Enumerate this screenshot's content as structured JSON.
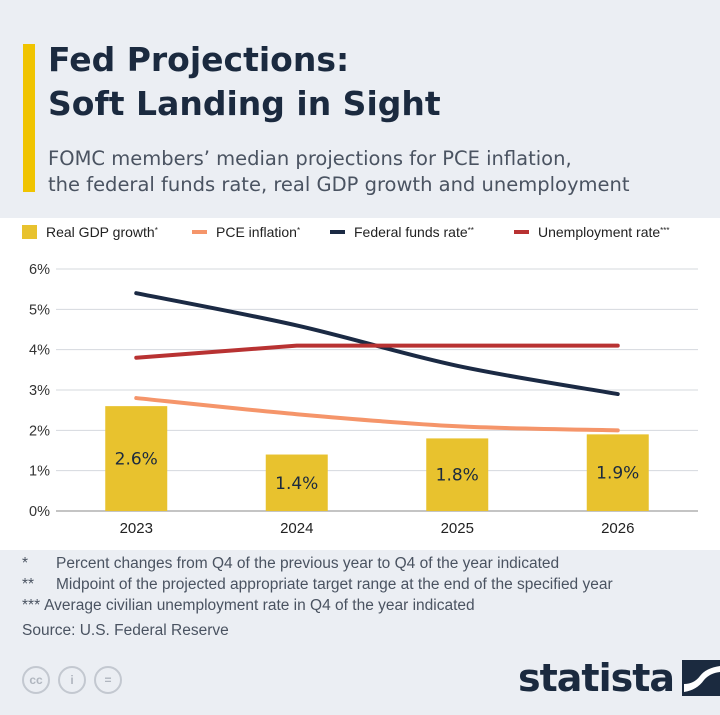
{
  "title_line1": "Fed Projections:",
  "title_line2": "Soft Landing in Sight",
  "subtitle_line1": "FOMC members’ median projections for PCE inflation,",
  "subtitle_line2": "the federal funds rate, real GDP growth and unemployment",
  "legend": [
    {
      "label": "Real GDP growth",
      "mark": "*",
      "color": "#e8c22e",
      "shape": "box"
    },
    {
      "label": "PCE inflation",
      "mark": "*",
      "color": "#f5956a",
      "shape": "line"
    },
    {
      "label": "Federal funds rate",
      "mark": "**",
      "color": "#1b2a44",
      "shape": "line"
    },
    {
      "label": "Unemployment rate",
      "mark": "***",
      "color": "#b83232",
      "shape": "line"
    }
  ],
  "chart_data": {
    "type": "bar",
    "categories": [
      "2023",
      "2024",
      "2025",
      "2026"
    ],
    "ylim": [
      0,
      6
    ],
    "yticks": [
      "0%",
      "1%",
      "2%",
      "3%",
      "4%",
      "5%",
      "6%"
    ],
    "grid": true,
    "bars": {
      "name": "Real GDP growth",
      "values": [
        2.6,
        1.4,
        1.8,
        1.9
      ],
      "labels": [
        "2.6%",
        "1.4%",
        "1.8%",
        "1.9%"
      ]
    },
    "series": [
      {
        "name": "PCE inflation",
        "type": "line",
        "values": [
          2.8,
          2.4,
          2.1,
          2.0
        ]
      },
      {
        "name": "Federal funds rate",
        "type": "line",
        "values": [
          5.4,
          4.6,
          3.6,
          2.9
        ]
      },
      {
        "name": "Unemployment rate",
        "type": "line",
        "values": [
          3.8,
          4.1,
          4.1,
          4.1
        ]
      }
    ]
  },
  "notes": [
    {
      "mark": "*",
      "text": "Percent changes from Q4 of the previous year to Q4 of the year indicated"
    },
    {
      "mark": "**",
      "text": "Midpoint of the projected appropriate target range at the end of the specified year"
    },
    {
      "mark": "***",
      "text": "Average civilian unemployment rate in Q4 of the year indicated"
    }
  ],
  "source": "Source: U.S. Federal Reserve",
  "license_icons": [
    {
      "name": "cc-icon",
      "glyph": "cc"
    },
    {
      "name": "attribution-icon",
      "glyph": "i"
    },
    {
      "name": "no-derivatives-icon",
      "glyph": "="
    }
  ],
  "brand": "statista"
}
